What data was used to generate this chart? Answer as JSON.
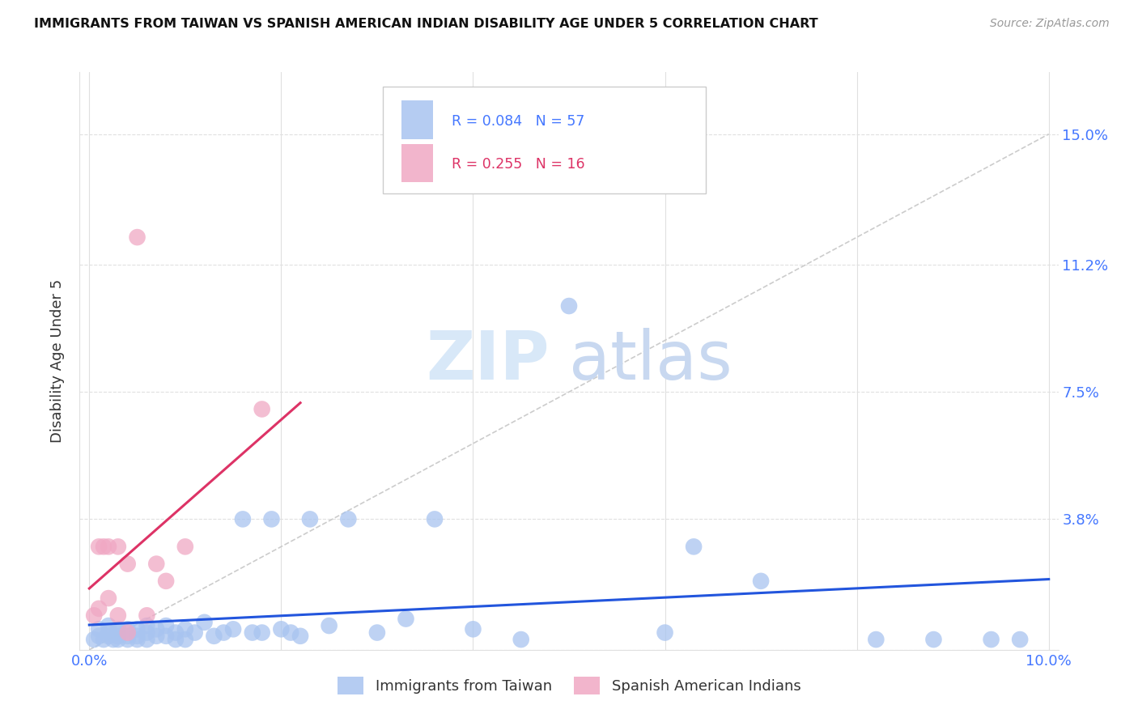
{
  "title": "IMMIGRANTS FROM TAIWAN VS SPANISH AMERICAN INDIAN DISABILITY AGE UNDER 5 CORRELATION CHART",
  "source": "Source: ZipAtlas.com",
  "ylabel_tick_vals": [
    0.0,
    0.038,
    0.075,
    0.112,
    0.15
  ],
  "ylabel_tick_labels": [
    "",
    "3.8%",
    "7.5%",
    "11.2%",
    "15.0%"
  ],
  "xlim": [
    0.0,
    0.1
  ],
  "ylim": [
    0.0,
    0.168
  ],
  "ylabel": "Disability Age Under 5",
  "blue_R": 0.084,
  "blue_N": 57,
  "pink_R": 0.255,
  "pink_N": 16,
  "blue_color": "#a8c4f0",
  "pink_color": "#f0a8c4",
  "blue_line_color": "#2255dd",
  "pink_line_color": "#dd3366",
  "diagonal_color": "#cccccc",
  "tick_color": "#4477ff",
  "grid_color": "#e0e0e0",
  "blue_x": [
    0.0005,
    0.001,
    0.001,
    0.0015,
    0.002,
    0.002,
    0.002,
    0.0025,
    0.003,
    0.003,
    0.003,
    0.003,
    0.004,
    0.004,
    0.004,
    0.005,
    0.005,
    0.005,
    0.006,
    0.006,
    0.006,
    0.007,
    0.007,
    0.008,
    0.008,
    0.009,
    0.009,
    0.01,
    0.01,
    0.011,
    0.012,
    0.013,
    0.014,
    0.015,
    0.016,
    0.017,
    0.018,
    0.019,
    0.02,
    0.021,
    0.022,
    0.023,
    0.025,
    0.027,
    0.03,
    0.033,
    0.036,
    0.04,
    0.045,
    0.05,
    0.06,
    0.063,
    0.07,
    0.082,
    0.088,
    0.094,
    0.097
  ],
  "blue_y": [
    0.003,
    0.004,
    0.006,
    0.003,
    0.004,
    0.005,
    0.007,
    0.003,
    0.003,
    0.004,
    0.005,
    0.006,
    0.003,
    0.004,
    0.006,
    0.003,
    0.004,
    0.006,
    0.003,
    0.005,
    0.007,
    0.004,
    0.006,
    0.004,
    0.007,
    0.003,
    0.005,
    0.003,
    0.006,
    0.005,
    0.008,
    0.004,
    0.005,
    0.006,
    0.038,
    0.005,
    0.005,
    0.038,
    0.006,
    0.005,
    0.004,
    0.038,
    0.007,
    0.038,
    0.005,
    0.009,
    0.038,
    0.006,
    0.003,
    0.1,
    0.005,
    0.03,
    0.02,
    0.003,
    0.003,
    0.003,
    0.003
  ],
  "pink_x": [
    0.0005,
    0.001,
    0.001,
    0.0015,
    0.002,
    0.002,
    0.003,
    0.003,
    0.004,
    0.004,
    0.005,
    0.006,
    0.007,
    0.008,
    0.01,
    0.018
  ],
  "pink_y": [
    0.01,
    0.012,
    0.03,
    0.03,
    0.015,
    0.03,
    0.01,
    0.03,
    0.005,
    0.025,
    0.12,
    0.01,
    0.025,
    0.02,
    0.03,
    0.07
  ],
  "watermark_zip": "ZIP",
  "watermark_atlas": "atlas",
  "watermark_color": "#d8e8f8"
}
